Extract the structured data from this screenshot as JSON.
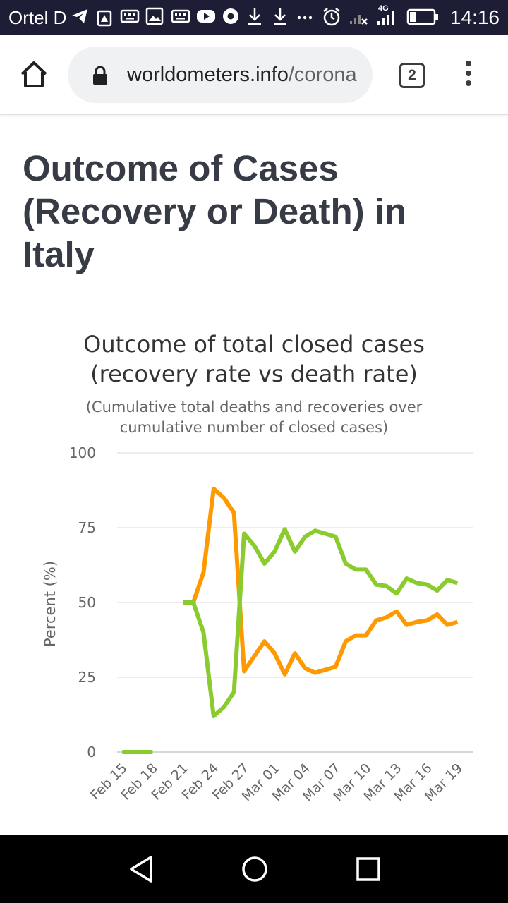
{
  "status_bar": {
    "carrier": "Ortel D",
    "network": "4G",
    "time": "14:16",
    "bg_color": "#1d1e36"
  },
  "browser": {
    "url_domain": "worldometers.info",
    "url_path": "/coronavirus/country/italy/",
    "tab_count": "2"
  },
  "page": {
    "title": "Outcome of Cases (Recovery or Death) in Italy"
  },
  "chart_data": {
    "type": "line",
    "title_line1": "Outcome of total closed cases",
    "title_line2": "(recovery rate vs death rate)",
    "subtitle_line1": "(Cumulative total deaths and recoveries over",
    "subtitle_line2": "cumulative number of closed cases)",
    "ylabel": "Percent (%)",
    "ylim": [
      0,
      100
    ],
    "yticks": [
      0,
      25,
      50,
      75,
      100
    ],
    "xticks": [
      "Feb 15",
      "Feb 18",
      "Feb 21",
      "Feb 24",
      "Feb 27",
      "Mar 01",
      "Mar 04",
      "Mar 07",
      "Mar 10",
      "Mar 13",
      "Mar 16",
      "Mar 19"
    ],
    "x": [
      "Feb 15",
      "Feb 16",
      "Feb 17",
      "Feb 18",
      "Feb 19",
      "Feb 20",
      "Feb 21",
      "Feb 22",
      "Feb 23",
      "Feb 24",
      "Feb 25",
      "Feb 26",
      "Feb 27",
      "Feb 28",
      "Feb 29",
      "Mar 01",
      "Mar 02",
      "Mar 03",
      "Mar 04",
      "Mar 05",
      "Mar 06",
      "Mar 07",
      "Mar 08",
      "Mar 09",
      "Mar 10",
      "Mar 11",
      "Mar 12",
      "Mar 13",
      "Mar 14",
      "Mar 15",
      "Mar 16",
      "Mar 17",
      "Mar 18",
      "Mar 19",
      "Mar 20"
    ],
    "grid": true,
    "series": [
      {
        "color": "#ff9900",
        "values": [
          null,
          null,
          null,
          null,
          null,
          null,
          null,
          50,
          60,
          88,
          85,
          80,
          27,
          32,
          37,
          33,
          26,
          33,
          28,
          26.5,
          27.5,
          28.5,
          37,
          39,
          39,
          44,
          45,
          47,
          42.5,
          43.5,
          44,
          46,
          42.5,
          43.5,
          null
        ]
      },
      {
        "color": "#8acb2e",
        "values": [
          0,
          0,
          0,
          0,
          null,
          null,
          50,
          50,
          40,
          12,
          15,
          20,
          73,
          69,
          63,
          67,
          74.5,
          67,
          72,
          74,
          73,
          72,
          63,
          61,
          61,
          56,
          55.5,
          53,
          58,
          56.5,
          56,
          54,
          57.5,
          56.5,
          null
        ]
      }
    ]
  }
}
